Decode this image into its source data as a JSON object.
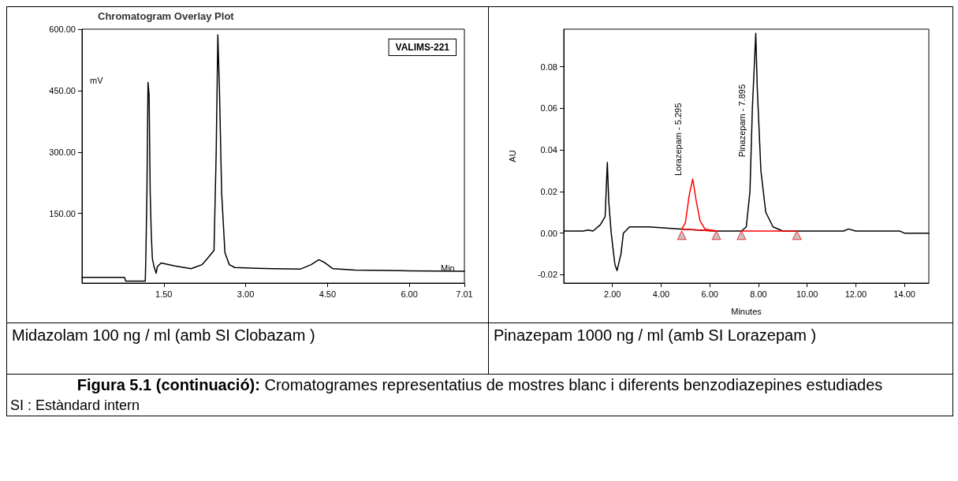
{
  "chart_data": [
    {
      "type": "line",
      "title": "Chromatogram Overlay Plot",
      "subtitle": "Midazolam 100 ng / ml  (amb SI Clobazam )",
      "xlabel": "Min",
      "ylabel": "mV",
      "annotations": [
        "VALIMS-221"
      ],
      "xlim": [
        0,
        7.01
      ],
      "ylim": [
        -20,
        600
      ],
      "xticks": [
        {
          "value": 1.5,
          "label": "1.50"
        },
        {
          "value": 3,
          "label": "3.00"
        },
        {
          "value": 4.5,
          "label": "4.50"
        },
        {
          "value": 6,
          "label": "6.00"
        },
        {
          "value": 7.01,
          "label": "7.01"
        }
      ],
      "yticks": [
        {
          "value": 150,
          "label": "150.00"
        },
        {
          "value": 300,
          "label": "300.00"
        },
        {
          "value": 450,
          "label": "450.00"
        },
        {
          "value": 600,
          "label": "600.00"
        }
      ],
      "grid": false,
      "marker": "none",
      "line_style": "solid",
      "series": [
        {
          "color": "#000000",
          "x": [
            0,
            0.78,
            0.8,
            1.16,
            1.17,
            1.19,
            1.21,
            1.23,
            1.25,
            1.27,
            1.29,
            1.32,
            1.36,
            1.38,
            1.45,
            1.7,
            2.0,
            2.2,
            2.3,
            2.42,
            2.46,
            2.49,
            2.52,
            2.56,
            2.62,
            2.7,
            2.8,
            3.2,
            3.5,
            4.0,
            4.2,
            4.34,
            4.45,
            4.6,
            5.0,
            6.0,
            7.01
          ],
          "values": [
            -6,
            -6,
            -15,
            -15,
            40,
            200,
            470,
            440,
            200,
            100,
            40,
            20,
            4,
            20,
            29,
            22,
            15,
            25,
            40,
            60,
            300,
            586,
            450,
            200,
            54,
            25,
            18,
            16,
            15,
            14,
            25,
            37,
            30,
            15,
            12,
            10,
            9
          ]
        }
      ]
    },
    {
      "type": "line",
      "subtitle": "Pinazepam  1000 ng / ml (amb SI Lorazepam )",
      "xlabel": "Minutes",
      "ylabel": "AU",
      "annotations": [
        {
          "text": "Lorazepam - 5.295",
          "x": 5.295,
          "y": 0.026
        },
        {
          "text": "Pinazepam - 7.895",
          "x": 7.895,
          "y": 0.035
        },
        "Figura 5.1 (continuació): Cromatogrames  representatius de mostres blanc i diferents benzodiazepines estudiades",
        "SI : Estàndard intern"
      ],
      "xlim": [
        0,
        15
      ],
      "ylim": [
        -0.024,
        0.098
      ],
      "xticks": [
        {
          "value": 2,
          "label": "2.00"
        },
        {
          "value": 4,
          "label": "4.00"
        },
        {
          "value": 6,
          "label": "6.00"
        },
        {
          "value": 8,
          "label": "8.00"
        },
        {
          "value": 10,
          "label": "10.00"
        },
        {
          "value": 12,
          "label": "12.00"
        },
        {
          "value": 14,
          "label": "14.00"
        }
      ],
      "yticks": [
        {
          "value": -0.02,
          "label": "-0.02"
        },
        {
          "value": 0,
          "label": "0.00"
        },
        {
          "value": 0.02,
          "label": "0.02"
        },
        {
          "value": 0.04,
          "label": "0.04"
        },
        {
          "value": 0.06,
          "label": "0.06"
        },
        {
          "value": 0.08,
          "label": "0.08"
        }
      ],
      "grid": false,
      "marker": "none",
      "line_style": "solid",
      "series": [
        {
          "color": "#000000",
          "x": [
            0,
            0.8,
            1.0,
            1.2,
            1.5,
            1.7,
            1.79,
            1.85,
            1.95,
            2.1,
            2.19,
            2.35,
            2.45,
            2.7,
            3.5,
            4.8,
            6.2,
            7.3,
            7.5,
            7.65,
            7.75,
            7.89,
            7.95,
            8.1,
            8.3,
            8.6,
            9.0,
            9.5,
            11.5,
            11.7,
            12.0,
            13.8,
            14.0,
            15
          ],
          "values": [
            0.001,
            0.001,
            0.0015,
            0.001,
            0.004,
            0.008,
            0.034,
            0.015,
            0.0,
            -0.015,
            -0.018,
            -0.01,
            0.0,
            0.003,
            0.003,
            0.002,
            0.001,
            0.001,
            0.003,
            0.02,
            0.06,
            0.096,
            0.07,
            0.03,
            0.01,
            0.003,
            0.001,
            0.001,
            0.001,
            0.002,
            0.001,
            0.001,
            0.0,
            0.0
          ]
        },
        {
          "color": "#ff0000",
          "x": [
            4.85,
            5.0,
            5.15,
            5.3,
            5.45,
            5.6,
            5.8,
            6.3
          ],
          "values": [
            0.002,
            0.005,
            0.018,
            0.026,
            0.015,
            0.006,
            0.002,
            0.001
          ]
        },
        {
          "color": "#ff0000",
          "x": [
            4.85,
            6.3
          ],
          "values": [
            0.002,
            0.001
          ]
        },
        {
          "color": "#ff0000",
          "x": [
            7.3,
            9.58
          ],
          "values": [
            0.001,
            0.001
          ]
        },
        {
          "type": "scatter",
          "marker": "triangle",
          "color": "#b4b4b4",
          "x": [
            4.85,
            6.27,
            7.3,
            9.58
          ],
          "values": [
            -0.001,
            -0.001,
            -0.001,
            -0.001
          ]
        }
      ]
    }
  ]
}
